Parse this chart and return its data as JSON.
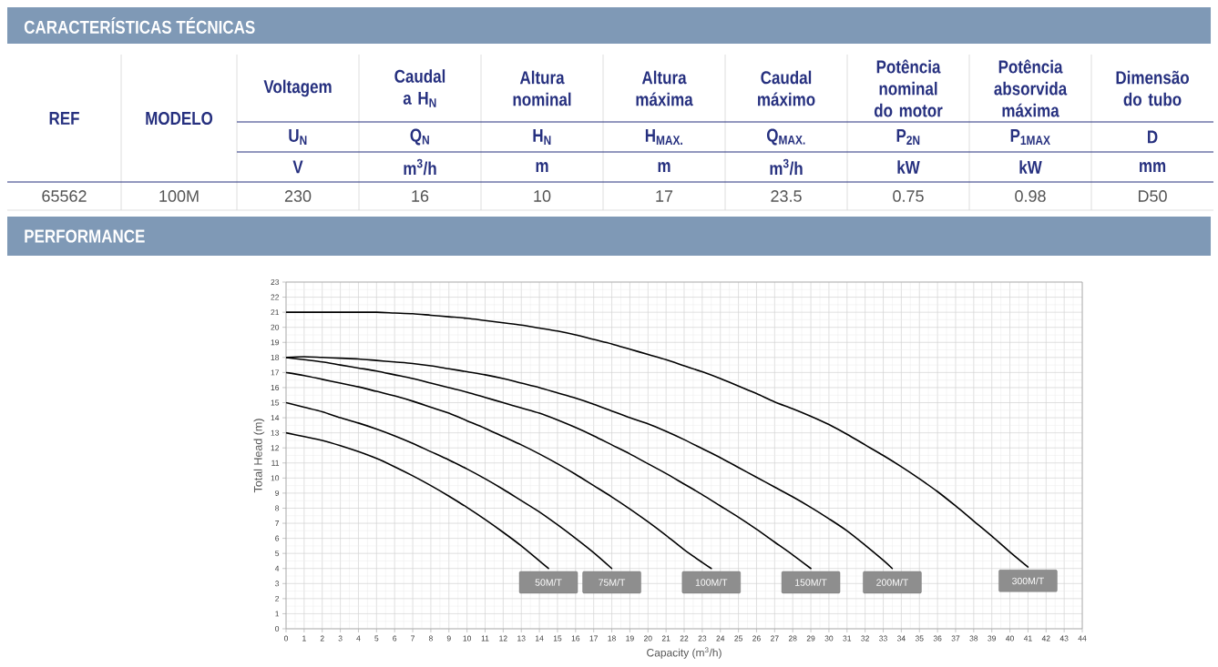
{
  "chart_data": [
    {
      "type": "other",
      "title": "CARACTERÍSTICAS TÉCNICAS",
      "categories": [
        "REF",
        "MODELO",
        "Voltagem",
        "Caudal a H$_{N}$",
        "Altura nominal",
        "Altura máxima",
        "Caudal máximo",
        "Potência nominal do motor",
        "Potência absorvida máxima",
        "Dimensão do tubo"
      ],
      "annotations": [
        "U$_{N}$",
        "Q$_{N}$",
        "H$_{N}$",
        "H$_{MAX.}$",
        "Q$_{MAX.}$",
        "P$_{2N}$",
        "P$_{1MAX}$",
        "D",
        "V",
        "m$^{3}$/h",
        "m",
        "m",
        "m$^{3}$/h",
        "kW",
        "kW",
        "mm",
        "65562",
        "100M",
        "230",
        "16",
        "10",
        "17",
        "23.5",
        "0.75",
        "0.98",
        "D50",
        "PERFORMANCE"
      ]
    },
    {
      "type": "line",
      "xlabel": "Capacity (m$^{3}$/h)",
      "ylabel": "Total Head (m)",
      "xlim": [
        0,
        44
      ],
      "ylim": [
        0,
        23
      ],
      "xticks": [
        0,
        1,
        2,
        3,
        4,
        5,
        6,
        7,
        8,
        9,
        10,
        11,
        12,
        13,
        14,
        15,
        16,
        17,
        18,
        19,
        20,
        21,
        22,
        23,
        24,
        25,
        26,
        27,
        28,
        29,
        30,
        31,
        32,
        33,
        34,
        35,
        36,
        37,
        38,
        39,
        40,
        41,
        42,
        43,
        44
      ],
      "yticks": [
        0,
        1,
        2,
        3,
        4,
        5,
        6,
        7,
        8,
        9,
        10,
        11,
        12,
        13,
        14,
        15,
        16,
        17,
        18,
        19,
        20,
        21,
        22,
        23
      ],
      "grid": true,
      "series": [
        {
          "name": "50M/T",
          "color": "#000000",
          "x": [
            0,
            1,
            2,
            3,
            4,
            5,
            6,
            7,
            8,
            9,
            10,
            11,
            12,
            13,
            14,
            14.5
          ],
          "values": [
            13,
            12.75,
            12.5,
            12.15,
            11.75,
            11.3,
            10.75,
            10.15,
            9.5,
            8.8,
            8.05,
            7.25,
            6.4,
            5.5,
            4.5,
            4.0
          ]
        },
        {
          "name": "75M/T",
          "color": "#000000",
          "x": [
            0,
            1,
            2,
            3,
            4,
            5,
            6,
            7,
            8,
            9,
            10,
            11,
            12,
            13,
            14,
            15,
            16,
            17,
            18
          ],
          "values": [
            15,
            14.7,
            14.4,
            14.0,
            13.65,
            13.25,
            12.8,
            12.3,
            11.75,
            11.2,
            10.6,
            9.95,
            9.25,
            8.5,
            7.75,
            6.9,
            6.0,
            5.05,
            4.0
          ]
        },
        {
          "name": "100M/T",
          "color": "#000000",
          "x": [
            0,
            1,
            2,
            3,
            4,
            5,
            6,
            7,
            8,
            9,
            10,
            11,
            12,
            13,
            14,
            15,
            16,
            17,
            18,
            19,
            20,
            21,
            22,
            23,
            23.5
          ],
          "values": [
            17,
            16.8,
            16.55,
            16.3,
            16.05,
            15.75,
            15.45,
            15.1,
            14.7,
            14.3,
            13.8,
            13.3,
            12.75,
            12.2,
            11.6,
            10.95,
            10.25,
            9.5,
            8.75,
            7.95,
            7.1,
            6.2,
            5.25,
            4.4,
            4.0
          ]
        },
        {
          "name": "150M/T",
          "color": "#000000",
          "x": [
            0,
            1,
            2,
            3,
            4,
            5,
            6,
            7,
            8,
            9,
            10,
            11,
            12,
            13,
            14,
            15,
            16,
            17,
            18,
            19,
            20,
            21,
            22,
            23,
            24,
            25,
            26,
            27,
            28,
            29
          ],
          "values": [
            18,
            17.85,
            17.7,
            17.5,
            17.3,
            17.1,
            16.85,
            16.6,
            16.3,
            16.0,
            15.7,
            15.35,
            15.0,
            14.65,
            14.3,
            13.85,
            13.35,
            12.8,
            12.2,
            11.6,
            10.95,
            10.3,
            9.6,
            8.9,
            8.15,
            7.4,
            6.6,
            5.75,
            4.9,
            4.0
          ]
        },
        {
          "name": "200M/T",
          "color": "#000000",
          "x": [
            0,
            1,
            2,
            3,
            4,
            5,
            6,
            7,
            8,
            9,
            10,
            11,
            12,
            13,
            14,
            15,
            16,
            17,
            18,
            19,
            20,
            21,
            22,
            23,
            24,
            25,
            26,
            27,
            28,
            29,
            30,
            31,
            32,
            33,
            33.5
          ],
          "values": [
            18,
            18.05,
            18.0,
            17.95,
            17.9,
            17.8,
            17.7,
            17.6,
            17.45,
            17.25,
            17.05,
            16.85,
            16.6,
            16.3,
            16.0,
            15.65,
            15.3,
            14.9,
            14.45,
            14.0,
            13.6,
            13.1,
            12.55,
            11.95,
            11.35,
            10.7,
            10.05,
            9.4,
            8.75,
            8.05,
            7.3,
            6.5,
            5.55,
            4.55,
            4.0
          ]
        },
        {
          "name": "300M/T",
          "color": "#000000",
          "x": [
            0,
            1,
            2,
            3,
            4,
            5,
            6,
            7,
            8,
            9,
            10,
            11,
            12,
            13,
            14,
            15,
            16,
            17,
            18,
            19,
            20,
            21,
            22,
            23,
            24,
            25,
            26,
            27,
            28,
            29,
            30,
            31,
            32,
            33,
            34,
            35,
            36,
            37,
            38,
            39,
            40,
            41
          ],
          "values": [
            21,
            21,
            21,
            21,
            21,
            21,
            20.95,
            20.9,
            20.8,
            20.7,
            20.6,
            20.45,
            20.3,
            20.15,
            19.95,
            19.75,
            19.5,
            19.2,
            18.9,
            18.55,
            18.2,
            17.85,
            17.45,
            17.05,
            16.6,
            16.1,
            15.6,
            15.05,
            14.6,
            14.1,
            13.55,
            12.9,
            12.2,
            11.5,
            10.75,
            9.95,
            9.1,
            8.15,
            7.15,
            6.15,
            5.1,
            4.1
          ]
        }
      ]
    }
  ]
}
